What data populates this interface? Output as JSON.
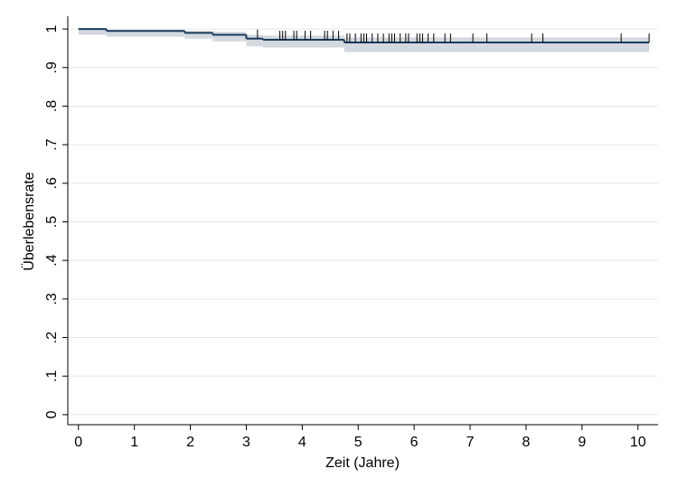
{
  "chart_data": {
    "type": "km",
    "x_label": "Zeit (Jahre)",
    "y_label": "Überlebensrate",
    "x": [
      0,
      0.5,
      1.9,
      2.4,
      3.0,
      3.3,
      4.75
    ],
    "x_end": 10.2,
    "survival": [
      1,
      0.995,
      0.99,
      0.985,
      0.975,
      0.972,
      0.965
    ],
    "lower": [
      0.985,
      0.98,
      0.975,
      0.968,
      0.955,
      0.952,
      0.94
    ],
    "upper": [
      1,
      0.998,
      0.995,
      0.993,
      0.985,
      0.983,
      0.978
    ],
    "censored_x": [
      3.2,
      3.6,
      3.65,
      3.7,
      3.85,
      3.9,
      4.05,
      4.15,
      4.4,
      4.45,
      4.55,
      4.65,
      4.8,
      4.85,
      4.95,
      5.05,
      5.1,
      5.15,
      5.25,
      5.35,
      5.45,
      5.55,
      5.6,
      5.65,
      5.75,
      5.85,
      5.9,
      6.05,
      6.1,
      6.15,
      6.25,
      6.35,
      6.55,
      6.65,
      7.05,
      7.3,
      8.1,
      8.3,
      9.7,
      10.2
    ],
    "line_color": "#1a3b5c",
    "band_color": "#d3d9de",
    "xlim": [
      -0.19,
      10.36
    ],
    "ylim": [
      -0.026,
      1.033
    ],
    "xticks": [
      0,
      1,
      2,
      3,
      4,
      5,
      6,
      7,
      8,
      9,
      10
    ],
    "yticks": [
      0,
      {
        "value": 0.1,
        "label": ".1"
      },
      {
        "value": 0.2,
        "label": ".2"
      },
      {
        "value": 0.3,
        "label": ".3"
      },
      {
        "value": 0.4,
        "label": ".4"
      },
      {
        "value": 0.5,
        "label": ".5"
      },
      {
        "value": 0.6,
        "label": ".6"
      },
      {
        "value": 0.7,
        "label": ".7"
      },
      {
        "value": 0.8,
        "label": ".8"
      },
      {
        "value": 0.9,
        "label": ".9"
      },
      1
    ],
    "grid": true
  }
}
